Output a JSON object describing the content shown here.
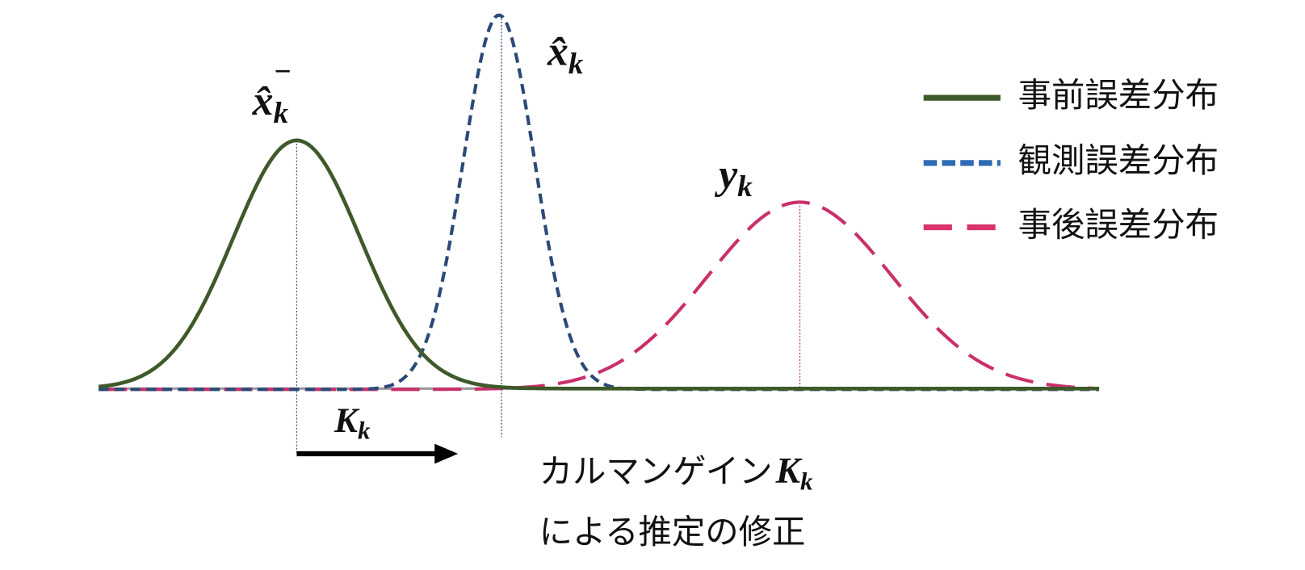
{
  "curve_labels": [
    {
      "base": "x̂",
      "sub": "k",
      "sup": "−"
    },
    {
      "base": "x̂",
      "sub": "k"
    },
    {
      "base": "y",
      "sub": "k"
    }
  ],
  "gain_label": {
    "base": "K",
    "sub": "k"
  },
  "legend": [
    "事前誤差分布",
    "観測誤差分布",
    "事後誤差分布"
  ],
  "caption": {
    "line1": "カルマンゲイン",
    "symbol": {
      "base": "K",
      "sub": "k"
    },
    "line2": "による推定の修正"
  }
}
